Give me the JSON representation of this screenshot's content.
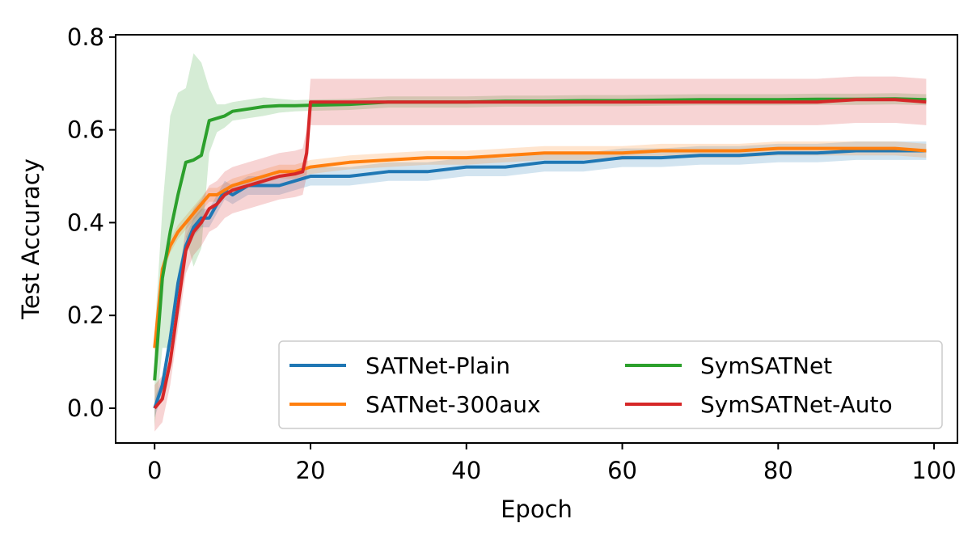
{
  "chart_data": {
    "type": "line",
    "xlabel": "Epoch",
    "ylabel": "Test Accuracy",
    "xlim": [
      -5,
      103
    ],
    "ylim": [
      -0.075,
      0.805
    ],
    "xticks": [
      0,
      20,
      40,
      60,
      80,
      100
    ],
    "yticks": [
      0.0,
      0.2,
      0.4,
      0.6,
      0.8
    ],
    "xtick_labels": [
      "0",
      "20",
      "40",
      "60",
      "80",
      "100"
    ],
    "ytick_labels": [
      "0.0",
      "0.2",
      "0.4",
      "0.6",
      "0.8"
    ],
    "grid": false,
    "legend_position": "lower-right",
    "legend_columns": 2,
    "series": [
      {
        "name": "SATNet-Plain",
        "color": "#1f77b4",
        "x": [
          0,
          1,
          2,
          3,
          4,
          5,
          6,
          7,
          8,
          9,
          10,
          12,
          14,
          16,
          18,
          20,
          25,
          30,
          35,
          40,
          45,
          50,
          55,
          60,
          65,
          70,
          75,
          80,
          85,
          90,
          95,
          99
        ],
        "y": [
          0.0,
          0.05,
          0.15,
          0.27,
          0.35,
          0.39,
          0.41,
          0.41,
          0.44,
          0.47,
          0.46,
          0.48,
          0.48,
          0.48,
          0.49,
          0.5,
          0.5,
          0.51,
          0.51,
          0.52,
          0.52,
          0.53,
          0.53,
          0.54,
          0.54,
          0.545,
          0.545,
          0.55,
          0.55,
          0.555,
          0.555,
          0.555
        ],
        "band": 0.02
      },
      {
        "name": "SATNet-300aux",
        "color": "#ff7f0e",
        "x": [
          0,
          1,
          2,
          3,
          4,
          5,
          6,
          7,
          8,
          9,
          10,
          12,
          14,
          16,
          18,
          20,
          25,
          30,
          35,
          40,
          45,
          50,
          55,
          60,
          65,
          70,
          75,
          80,
          85,
          90,
          95,
          99
        ],
        "y": [
          0.13,
          0.3,
          0.35,
          0.38,
          0.4,
          0.42,
          0.44,
          0.46,
          0.46,
          0.47,
          0.48,
          0.49,
          0.5,
          0.51,
          0.51,
          0.52,
          0.53,
          0.535,
          0.54,
          0.54,
          0.545,
          0.55,
          0.55,
          0.55,
          0.555,
          0.555,
          0.555,
          0.56,
          0.56,
          0.56,
          0.56,
          0.555
        ],
        "band": 0.015
      },
      {
        "name": "SymSATNet",
        "color": "#2ca02c",
        "x": [
          0,
          1,
          2,
          3,
          4,
          5,
          6,
          7,
          8,
          9,
          10,
          12,
          14,
          16,
          18,
          20,
          25,
          30,
          35,
          40,
          45,
          50,
          55,
          60,
          65,
          70,
          75,
          80,
          85,
          90,
          95,
          99
        ],
        "y": [
          0.06,
          0.28,
          0.38,
          0.46,
          0.53,
          0.535,
          0.545,
          0.62,
          0.625,
          0.63,
          0.64,
          0.645,
          0.65,
          0.652,
          0.652,
          0.653,
          0.655,
          0.66,
          0.66,
          0.66,
          0.662,
          0.662,
          0.663,
          0.663,
          0.664,
          0.665,
          0.665,
          0.665,
          0.666,
          0.666,
          0.667,
          0.665
        ],
        "band_x": [
          0,
          1,
          2,
          3,
          4,
          5,
          6,
          7,
          8,
          9,
          10,
          12,
          14,
          16,
          18,
          20,
          25,
          30,
          35,
          40,
          45,
          50,
          55,
          60,
          65,
          70,
          75,
          80,
          85,
          90,
          95,
          99
        ],
        "band": [
          0.1,
          0.15,
          0.25,
          0.22,
          0.16,
          0.23,
          0.2,
          0.07,
          0.03,
          0.025,
          0.02,
          0.02,
          0.02,
          0.015,
          0.012,
          0.012,
          0.012,
          0.012,
          0.012,
          0.012,
          0.012,
          0.012,
          0.012,
          0.012,
          0.012,
          0.012,
          0.012,
          0.012,
          0.012,
          0.012,
          0.012,
          0.012
        ]
      },
      {
        "name": "SymSATNet-Auto",
        "color": "#d62728",
        "x": [
          0,
          1,
          2,
          3,
          4,
          5,
          6,
          7,
          8,
          9,
          10,
          12,
          14,
          16,
          18,
          19,
          19.5,
          20,
          25,
          30,
          35,
          40,
          45,
          50,
          55,
          60,
          65,
          70,
          75,
          80,
          85,
          90,
          95,
          99
        ],
        "y": [
          0.0,
          0.02,
          0.1,
          0.22,
          0.34,
          0.38,
          0.4,
          0.43,
          0.44,
          0.46,
          0.47,
          0.48,
          0.49,
          0.5,
          0.505,
          0.51,
          0.55,
          0.66,
          0.66,
          0.66,
          0.66,
          0.66,
          0.66,
          0.66,
          0.66,
          0.66,
          0.66,
          0.66,
          0.66,
          0.66,
          0.66,
          0.665,
          0.665,
          0.66
        ],
        "band": 0.05
      }
    ]
  }
}
